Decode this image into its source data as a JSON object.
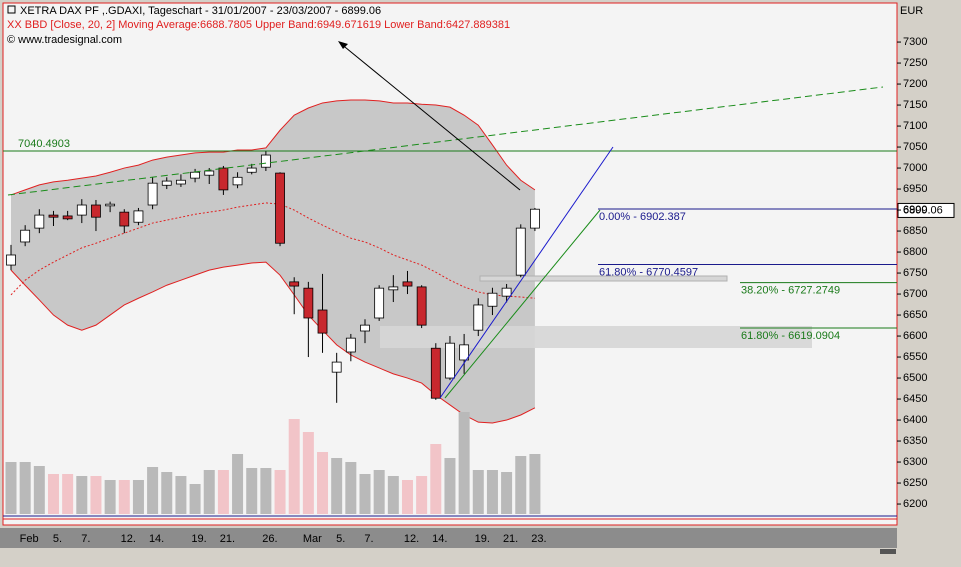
{
  "chart_data": {
    "type": "candlestick",
    "title": "XETRA DAX PF ,.GDAXI, Tageschart - 31/01/2007 - 23/03/2007 - 6899.06",
    "subtitle": "XX BBD [Close, 20, 2] Moving Average:6688.7805 Upper Band:6949.671619 Lower Band:6427.889381",
    "source": "© www.tradesignal.com",
    "y_axis_label": "EUR",
    "categories": [
      null,
      "Feb",
      null,
      "5.",
      null,
      "7.",
      null,
      null,
      "12.",
      null,
      "14.",
      null,
      null,
      "19.",
      null,
      "21.",
      null,
      null,
      "26.",
      null,
      null,
      "Mar",
      null,
      "5.",
      null,
      "7.",
      null,
      null,
      "12.",
      null,
      "14.",
      null,
      null,
      "19.",
      null,
      "21.",
      null,
      "23."
    ],
    "open": [
      6769,
      6824,
      6857,
      6888,
      6886,
      6888,
      6912,
      6910,
      6895,
      6871,
      6912,
      6959,
      6962,
      6976,
      6983,
      7000,
      6960,
      6990,
      7002,
      6988,
      6729,
      6714,
      6662,
      6514,
      6562,
      6612,
      6643,
      6710,
      6729,
      6717,
      6571,
      6500,
      6543,
      6614,
      6671,
      6695,
      6745,
      6857
    ],
    "high": [
      6817,
      6864,
      6902,
      6898,
      6898,
      6926,
      6924,
      6920,
      6902,
      6905,
      6978,
      6978,
      6985,
      6998,
      7000,
      7005,
      6990,
      7010,
      7040,
      6990,
      6740,
      6729,
      6748,
      6560,
      6605,
      6640,
      6721,
      6745,
      6755,
      6721,
      6583,
      6600,
      6605,
      6690,
      6715,
      6724,
      6866,
      6905
    ],
    "low": [
      6757,
      6814,
      6845,
      6862,
      6876,
      6869,
      6850,
      6895,
      6845,
      6864,
      6902,
      6950,
      6955,
      6966,
      6962,
      6936,
      6952,
      6985,
      6993,
      6814,
      6652,
      6550,
      6560,
      6441,
      6540,
      6583,
      6636,
      6681,
      6700,
      6619,
      6448,
      6495,
      6510,
      6600,
      6650,
      6680,
      6740,
      6850
    ],
    "close": [
      6793,
      6852,
      6888,
      6883,
      6879,
      6912,
      6883,
      6914,
      6862,
      6898,
      6964,
      6969,
      6971,
      6990,
      6993,
      6948,
      6978,
      7000,
      7031,
      6821,
      6719,
      6643,
      6607,
      6538,
      6595,
      6626,
      6714,
      6717,
      6719,
      6626,
      6452,
      6583,
      6579,
      6674,
      6702,
      6714,
      6857,
      6902
    ],
    "volume": [
      52,
      52,
      48,
      40,
      40,
      38,
      38,
      34,
      34,
      34,
      47,
      42,
      38,
      30,
      44,
      44,
      60,
      46,
      46,
      44,
      95,
      82,
      62,
      56,
      52,
      40,
      44,
      38,
      34,
      38,
      70,
      56,
      102,
      44,
      44,
      42,
      58,
      60
    ],
    "upper_band": [
      6936,
      6948,
      6960,
      6967,
      6971,
      6976,
      6981,
      6990,
      7000,
      7007,
      7019,
      7026,
      7031,
      7036,
      7038,
      7038,
      7043,
      7043,
      7048,
      7090,
      7126,
      7143,
      7155,
      7160,
      7162,
      7162,
      7160,
      7155,
      7155,
      7152,
      7150,
      7145,
      7126,
      7102,
      7055,
      7007,
      6971,
      6948
    ],
    "middle_band": [
      6698,
      6733,
      6757,
      6776,
      6793,
      6810,
      6821,
      6833,
      6845,
      6857,
      6869,
      6876,
      6883,
      6890,
      6895,
      6900,
      6907,
      6912,
      6917,
      6914,
      6900,
      6881,
      6864,
      6848,
      6833,
      6824,
      6810,
      6793,
      6781,
      6769,
      6752,
      6733,
      6717,
      6705,
      6698,
      6695,
      6693,
      6690
    ],
    "lower_band": [
      6757,
      6721,
      6686,
      6650,
      6626,
      6614,
      6626,
      6650,
      6674,
      6690,
      6705,
      6721,
      6733,
      6745,
      6757,
      6764,
      6769,
      6774,
      6776,
      6745,
      6698,
      6650,
      6614,
      6579,
      6555,
      6538,
      6524,
      6510,
      6500,
      6488,
      6460,
      6436,
      6412,
      6395,
      6393,
      6400,
      6412,
      6429
    ],
    "up_color": "#ffffff",
    "down_color": "#c8282e",
    "up_volume_color": "#b9b9b9",
    "down_volume_color": "#f2c4c8",
    "band_color": "#e02020",
    "band_fill": "#c8c8c8",
    "ylim": [
      6162,
      7393
    ],
    "yticks": [
      6200,
      6250,
      6300,
      6350,
      6400,
      6450,
      6500,
      6550,
      6600,
      6650,
      6700,
      6750,
      6800,
      6850,
      6900,
      6950,
      7000,
      7050,
      7100,
      7150,
      7200,
      7250,
      7300
    ],
    "last_price": 6899.06,
    "horizontal_line": 7040.4903,
    "horizontal_line_color": "#1a7a1a",
    "levels": [
      {
        "label": "0.00% - 6902.387",
        "value": 6902.387,
        "color": "#1a1a8c"
      },
      {
        "label": "61.80% - 6770.4597",
        "value": 6770.4597,
        "color": "#1a1a8c"
      },
      {
        "label": "38.20% - 6727.2749",
        "value": 6727.2749,
        "color": "#1a7a1a"
      },
      {
        "label": "61.80% - 6619.0904",
        "value": 6619.0904,
        "color": "#1a7a1a"
      }
    ]
  }
}
